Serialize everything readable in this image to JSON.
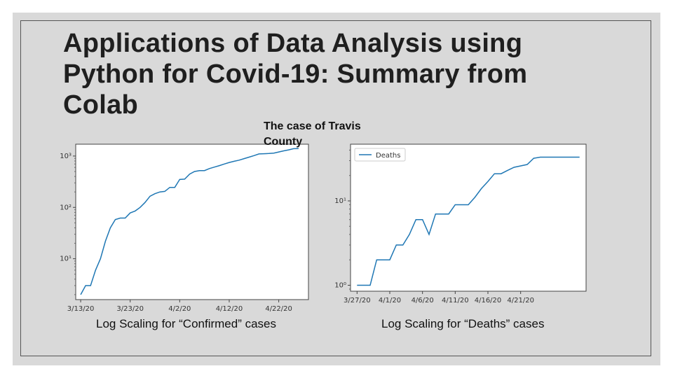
{
  "slide": {
    "title": "Applications of Data Analysis using Python for Covid-19: Summary from Colab",
    "subtitle": "The case of Travis County",
    "captions": [
      "Log Scaling for “Confirmed” cases",
      "Log Scaling for “Deaths” cases"
    ]
  },
  "colors": {
    "line": "#1f77b4",
    "background": "#d9d9d9",
    "plot_bg": "#ffffff"
  },
  "chart_data": [
    {
      "type": "line",
      "title": "",
      "xlabel": "",
      "ylabel": "",
      "scale_y": "log",
      "ylim": [
        1.6,
        1700
      ],
      "xlim": [
        "2020-03-12",
        "2020-04-28"
      ],
      "xticks": [
        "3/13/20",
        "3/23/20",
        "4/2/20",
        "4/12/20",
        "4/22/20"
      ],
      "ytick_labels": [
        "10^1",
        "10^2",
        "10^3"
      ],
      "grid": false,
      "legend": null,
      "series": [
        {
          "x": [
            "2020-03-13",
            "2020-03-14",
            "2020-03-15",
            "2020-03-16",
            "2020-03-17",
            "2020-03-18",
            "2020-03-19",
            "2020-03-20",
            "2020-03-21",
            "2020-03-22",
            "2020-03-23",
            "2020-03-24",
            "2020-03-25",
            "2020-03-26",
            "2020-03-27",
            "2020-03-28",
            "2020-03-29",
            "2020-03-30",
            "2020-03-31",
            "2020-04-01",
            "2020-04-02",
            "2020-04-03",
            "2020-04-04",
            "2020-04-05",
            "2020-04-06",
            "2020-04-07",
            "2020-04-08",
            "2020-04-09",
            "2020-04-10",
            "2020-04-11",
            "2020-04-12",
            "2020-04-13",
            "2020-04-14",
            "2020-04-15",
            "2020-04-16",
            "2020-04-17",
            "2020-04-18",
            "2020-04-19",
            "2020-04-20",
            "2020-04-21",
            "2020-04-22",
            "2020-04-23",
            "2020-04-24",
            "2020-04-25",
            "2020-04-26"
          ],
          "y": [
            2,
            3,
            3,
            6,
            10,
            22,
            40,
            58,
            62,
            62,
            78,
            85,
            100,
            125,
            165,
            185,
            200,
            205,
            245,
            245,
            350,
            355,
            445,
            500,
            520,
            520,
            570,
            610,
            650,
            700,
            750,
            790,
            830,
            890,
            950,
            1020,
            1100,
            1110,
            1120,
            1140,
            1200,
            1260,
            1320,
            1390,
            1400
          ]
        }
      ]
    },
    {
      "type": "line",
      "title": "",
      "xlabel": "",
      "ylabel": "",
      "scale_y": "log",
      "ylim": [
        0.85,
        47
      ],
      "xlim": [
        "2020-03-26",
        "2020-05-01"
      ],
      "xticks": [
        "3/27/20",
        "4/1/20",
        "4/6/20",
        "4/11/20",
        "4/16/20",
        "4/21/20"
      ],
      "ytick_labels": [
        "10^0",
        "10^1"
      ],
      "grid": false,
      "legend": "top-left",
      "series": [
        {
          "name": "Deaths",
          "x": [
            "2020-03-27",
            "2020-03-28",
            "2020-03-29",
            "2020-03-30",
            "2020-03-31",
            "2020-04-01",
            "2020-04-02",
            "2020-04-03",
            "2020-04-04",
            "2020-04-05",
            "2020-04-06",
            "2020-04-07",
            "2020-04-08",
            "2020-04-09",
            "2020-04-10",
            "2020-04-11",
            "2020-04-12",
            "2020-04-13",
            "2020-04-14",
            "2020-04-15",
            "2020-04-16",
            "2020-04-17",
            "2020-04-18",
            "2020-04-19",
            "2020-04-20",
            "2020-04-21",
            "2020-04-22",
            "2020-04-23",
            "2020-04-24",
            "2020-04-25",
            "2020-04-26",
            "2020-04-27",
            "2020-04-28",
            "2020-04-29",
            "2020-04-30"
          ],
          "y": [
            1,
            1,
            1,
            2,
            2,
            2,
            3,
            3,
            4,
            6,
            6,
            4,
            7,
            7,
            7,
            9,
            9,
            9,
            11,
            14,
            17,
            21,
            21,
            23,
            25,
            26,
            27,
            32,
            33,
            33,
            33,
            33,
            33,
            33,
            33
          ]
        }
      ]
    }
  ]
}
